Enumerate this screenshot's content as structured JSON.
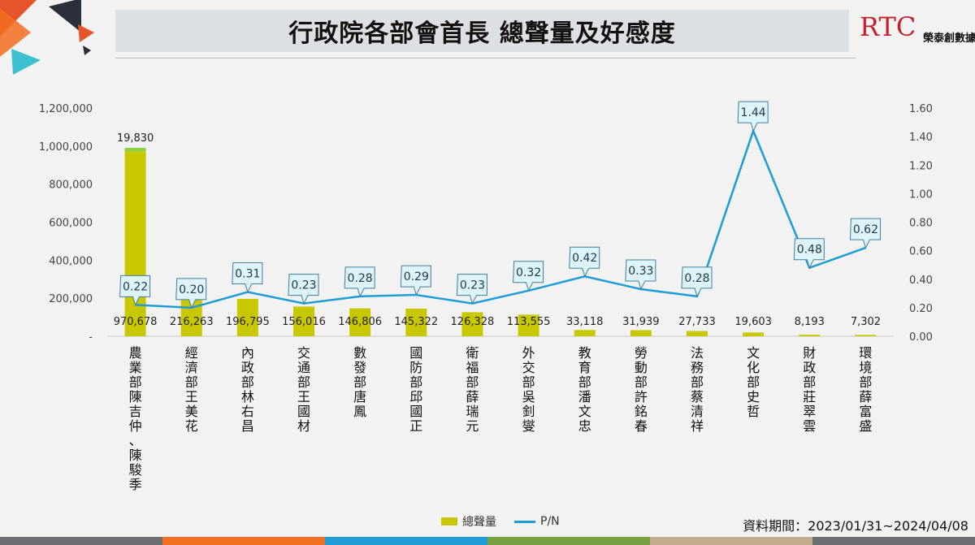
{
  "title": "行政院各部會首長 總聲量及好感度",
  "logo": {
    "brand": "RTC",
    "name": "榮泰創數據"
  },
  "period": "資料期間：2023/01/31~2024/04/08",
  "legend": {
    "volume": "總聲量",
    "pn": "P/N"
  },
  "colors": {
    "bar": "#c9c800",
    "bar_top": "#8dcf3c",
    "line": "#1e9cd6",
    "callout_fill": "#dff3fb",
    "callout_stroke": "#3f7f9c"
  },
  "stripe_colors": [
    "#6d6e71",
    "#f36f21",
    "#1e9cd6",
    "#77a140",
    "#c2ad8f",
    "#6d6e71"
  ],
  "chart_data": {
    "type": "bar+line",
    "categories": [
      "農業部陳吉仲、陳駿季",
      "經濟部王美花",
      "內政部林右昌",
      "交通部王國材",
      "數發部唐鳳",
      "國防部邱國正",
      "衛福部薛瑞元",
      "外交部吳釗燮",
      "教育部潘文忠",
      "勞動部許銘春",
      "法務部蔡清祥",
      "文化部史哲",
      "財政部莊翠雲",
      "環境部薛富盛"
    ],
    "series": [
      {
        "name": "總聲量",
        "axis": "left",
        "values": [
          970678,
          216263,
          196795,
          156016,
          146806,
          145322,
          126328,
          113555,
          33118,
          31939,
          27733,
          19603,
          8193,
          7302
        ],
        "labels": [
          "970,678",
          "216,263",
          "196,795",
          "156,016",
          "146,806",
          "145,322",
          "126,328",
          "113,555",
          "33,118",
          "31,939",
          "27,733",
          "19,603",
          "8,193",
          "7,302"
        ]
      },
      {
        "name": "P/N",
        "axis": "right",
        "values": [
          0.22,
          0.2,
          0.31,
          0.23,
          0.28,
          0.29,
          0.23,
          0.32,
          0.42,
          0.33,
          0.28,
          1.44,
          0.48,
          0.62
        ],
        "labels": [
          "0.22",
          "0.20",
          "0.31",
          "0.23",
          "0.28",
          "0.29",
          "0.23",
          "0.32",
          "0.42",
          "0.33",
          "0.28",
          "1.44",
          "0.48",
          "0.62"
        ]
      }
    ],
    "stacked_top": {
      "category_index": 0,
      "value": 19830,
      "label": "19,830"
    },
    "y_left": {
      "ticks": [
        0,
        200000,
        400000,
        600000,
        800000,
        1000000,
        1200000
      ],
      "tick_labels": [
        "-",
        "200,000",
        "400,000",
        "600,000",
        "800,000",
        "1,000,000",
        "1,200,000"
      ],
      "ylim": [
        0,
        1200000
      ]
    },
    "y_right": {
      "ticks": [
        0,
        0.2,
        0.4,
        0.6,
        0.8,
        1.0,
        1.2,
        1.4,
        1.6
      ],
      "tick_labels": [
        "0.00",
        "0.20",
        "0.40",
        "0.60",
        "0.80",
        "1.00",
        "1.20",
        "1.40",
        "1.60"
      ],
      "ylim": [
        0,
        1.6
      ]
    },
    "legend_position": "bottom"
  }
}
